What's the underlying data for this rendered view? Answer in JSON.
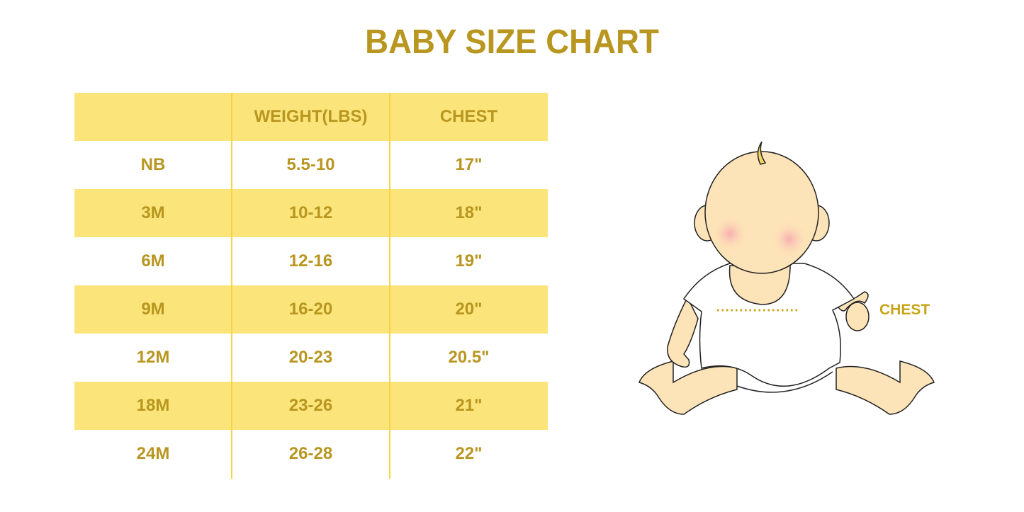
{
  "title": "BABY SIZE CHART",
  "table": {
    "headers": [
      "",
      "WEIGHT(LBS)",
      "CHEST"
    ],
    "rows": [
      [
        "NB",
        "5.5-10",
        "17\""
      ],
      [
        "3M",
        "10-12",
        "18\""
      ],
      [
        "6M",
        "12-16",
        "19\""
      ],
      [
        "9M",
        "16-20",
        "20\""
      ],
      [
        "12M",
        "20-23",
        "20.5\""
      ],
      [
        "18M",
        "23-26",
        "21\""
      ],
      [
        "24M",
        "26-28",
        "22\""
      ]
    ]
  },
  "illustration": {
    "chest_label": "CHEST"
  },
  "colors": {
    "text": "#b8961f",
    "band": "#fbe57a",
    "skin": "#fde3b8"
  }
}
